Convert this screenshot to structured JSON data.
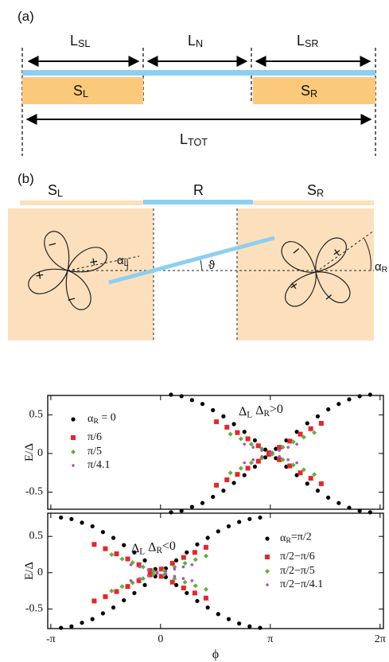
{
  "panel_a": {
    "label": "(a)",
    "l_sl": "L_{SL}",
    "l_n": "L_{N}",
    "l_sr": "L_{SR}",
    "s_l": "S_{L}",
    "s_r": "S_{R}",
    "l_tot": "L_{TOT}"
  },
  "panel_b": {
    "label": "(b)",
    "s_l": "S_{L}",
    "r": "R",
    "s_r": "S_{R}",
    "left_signs": [
      "−",
      "+",
      "+",
      "−"
    ],
    "right_signs": [
      "−",
      "+",
      "+",
      "−"
    ],
    "alpha_l": "α_{L}",
    "theta": "ϑ",
    "alpha_r": "α_{R}"
  },
  "chart_data": [
    {
      "type": "scatter",
      "y_label": "E/Δ",
      "annotation": "Δ_{L} Δ_{R}>0",
      "legend": "upper left",
      "xlim": [
        -3.23,
        6.38
      ],
      "ylim": [
        -0.72,
        0.75
      ],
      "yticks": [
        -0.5,
        0,
        0.5
      ],
      "series": [
        {
          "name": "α_{R} = 0",
          "color": "#000000",
          "marker": "circle",
          "x": [
            0.3,
            0.6,
            0.9,
            1.2,
            1.5,
            1.8,
            2.1,
            2.4,
            2.7,
            3.0,
            3.3,
            3.6,
            3.9,
            4.2,
            4.5,
            4.8,
            5.1,
            5.4,
            5.7,
            6.0
          ],
          "values": [
            0.76,
            0.74,
            0.69,
            0.64,
            0.56,
            0.48,
            0.38,
            0.28,
            0.17,
            0.05,
            0.06,
            0.17,
            0.28,
            0.39,
            0.48,
            0.57,
            0.64,
            0.7,
            0.74,
            0.76
          ],
          "mirror_values": [
            -0.76,
            -0.74,
            -0.69,
            -0.64,
            -0.56,
            -0.48,
            -0.38,
            -0.28,
            -0.17,
            -0.05,
            -0.06,
            -0.17,
            -0.28,
            -0.39,
            -0.48,
            -0.57,
            -0.64,
            -0.7,
            -0.74,
            -0.76
          ]
        },
        {
          "name": "π/6",
          "color": "#e8262a",
          "marker": "square",
          "x": [
            1.6,
            1.9,
            2.2,
            2.5,
            2.8,
            3.1,
            3.4,
            3.7,
            4.0,
            4.3,
            4.6
          ],
          "values": [
            0.41,
            0.34,
            0.27,
            0.19,
            0.1,
            0.01,
            0.08,
            0.16,
            0.25,
            0.32,
            0.39
          ],
          "mirror_values": [
            -0.41,
            -0.34,
            -0.27,
            -0.19,
            -0.1,
            -0.01,
            -0.08,
            -0.16,
            -0.25,
            -0.32,
            -0.39
          ]
        },
        {
          "name": "π/5",
          "color": "#5cb33a",
          "marker": "diamond",
          "x": [
            2.0,
            2.3,
            2.6,
            2.9,
            3.2,
            3.5,
            3.8,
            4.1,
            4.4
          ],
          "values": [
            0.25,
            0.19,
            0.12,
            0.06,
            0.01,
            0.08,
            0.15,
            0.21,
            0.27
          ],
          "mirror_values": [
            -0.25,
            -0.19,
            -0.12,
            -0.06,
            -0.01,
            -0.08,
            -0.15,
            -0.21,
            -0.27
          ]
        },
        {
          "name": "π/4.1",
          "color": "#b54bc0",
          "marker": "dot",
          "x": [
            2.4,
            2.65,
            2.9,
            3.15,
            3.4,
            3.65,
            3.9
          ],
          "values": [
            0.12,
            0.08,
            0.04,
            0.0,
            0.04,
            0.08,
            0.12
          ],
          "mirror_values": [
            -0.12,
            -0.08,
            -0.04,
            0.0,
            -0.04,
            -0.08,
            -0.12
          ]
        }
      ]
    },
    {
      "type": "scatter",
      "x_label": "ϕ",
      "y_label": "E/Δ",
      "annotation": "Δ_{L} Δ_{R}<0",
      "legend": "upper right",
      "xlim": [
        -3.23,
        6.38
      ],
      "ylim": [
        -0.77,
        0.82
      ],
      "xticks": [
        {
          "value": -3.1416,
          "label": "-π"
        },
        0,
        {
          "value": 3.1416,
          "label": "π"
        },
        {
          "value": 6.2832,
          "label": "2π"
        }
      ],
      "yticks": [
        -0.5,
        0,
        0.5
      ],
      "series": [
        {
          "name": "α_{R}=π/2",
          "color": "#000000",
          "marker": "circle",
          "x": [
            -2.85,
            -2.55,
            -2.25,
            -1.95,
            -1.65,
            -1.35,
            -1.05,
            -0.75,
            -0.45,
            -0.15,
            0.15,
            0.45,
            0.75,
            1.05,
            1.35,
            1.65,
            1.95,
            2.25,
            2.55,
            2.85
          ],
          "values": [
            0.76,
            0.74,
            0.69,
            0.64,
            0.56,
            0.48,
            0.38,
            0.28,
            0.17,
            0.05,
            0.06,
            0.17,
            0.28,
            0.39,
            0.48,
            0.57,
            0.64,
            0.7,
            0.74,
            0.76
          ],
          "mirror_values": [
            -0.76,
            -0.74,
            -0.69,
            -0.64,
            -0.56,
            -0.48,
            -0.38,
            -0.28,
            -0.17,
            -0.05,
            -0.06,
            -0.17,
            -0.28,
            -0.39,
            -0.48,
            -0.57,
            -0.64,
            -0.7,
            -0.74,
            -0.76
          ]
        },
        {
          "name": "π/2−π/6",
          "color": "#e8262a",
          "marker": "square",
          "x": [
            -1.9,
            -1.58,
            -1.26,
            -0.94,
            -0.62,
            -0.3,
            0.02,
            0.34,
            0.66,
            0.98,
            1.3
          ],
          "values": [
            0.39,
            0.33,
            0.26,
            0.19,
            0.11,
            0.03,
            0.05,
            0.13,
            0.21,
            0.28,
            0.35
          ],
          "mirror_values": [
            -0.39,
            -0.33,
            -0.26,
            -0.19,
            -0.11,
            -0.03,
            -0.05,
            -0.13,
            -0.21,
            -0.28,
            -0.35
          ]
        },
        {
          "name": "π/2−π/5",
          "color": "#5cb33a",
          "marker": "diamond",
          "x": [
            -1.4,
            -1.1,
            -0.8,
            -0.5,
            -0.2,
            0.1,
            0.4,
            0.7,
            1.0,
            1.3
          ],
          "values": [
            0.25,
            0.19,
            0.14,
            0.08,
            0.02,
            0.03,
            0.08,
            0.13,
            0.18,
            0.23
          ],
          "mirror_values": [
            -0.25,
            -0.19,
            -0.14,
            -0.08,
            -0.02,
            -0.03,
            -0.08,
            -0.13,
            -0.18,
            -0.23
          ]
        },
        {
          "name": "π/2−π/4.1",
          "color": "#b54bc0",
          "marker": "dot",
          "x": [
            -0.85,
            -0.6,
            -0.35,
            -0.1,
            0.15,
            0.4,
            0.65,
            0.9
          ],
          "values": [
            0.11,
            0.08,
            0.04,
            0.01,
            0.02,
            0.05,
            0.08,
            0.11
          ],
          "mirror_values": [
            -0.11,
            -0.08,
            -0.04,
            -0.01,
            -0.02,
            -0.05,
            -0.08,
            -0.11
          ]
        }
      ]
    }
  ]
}
